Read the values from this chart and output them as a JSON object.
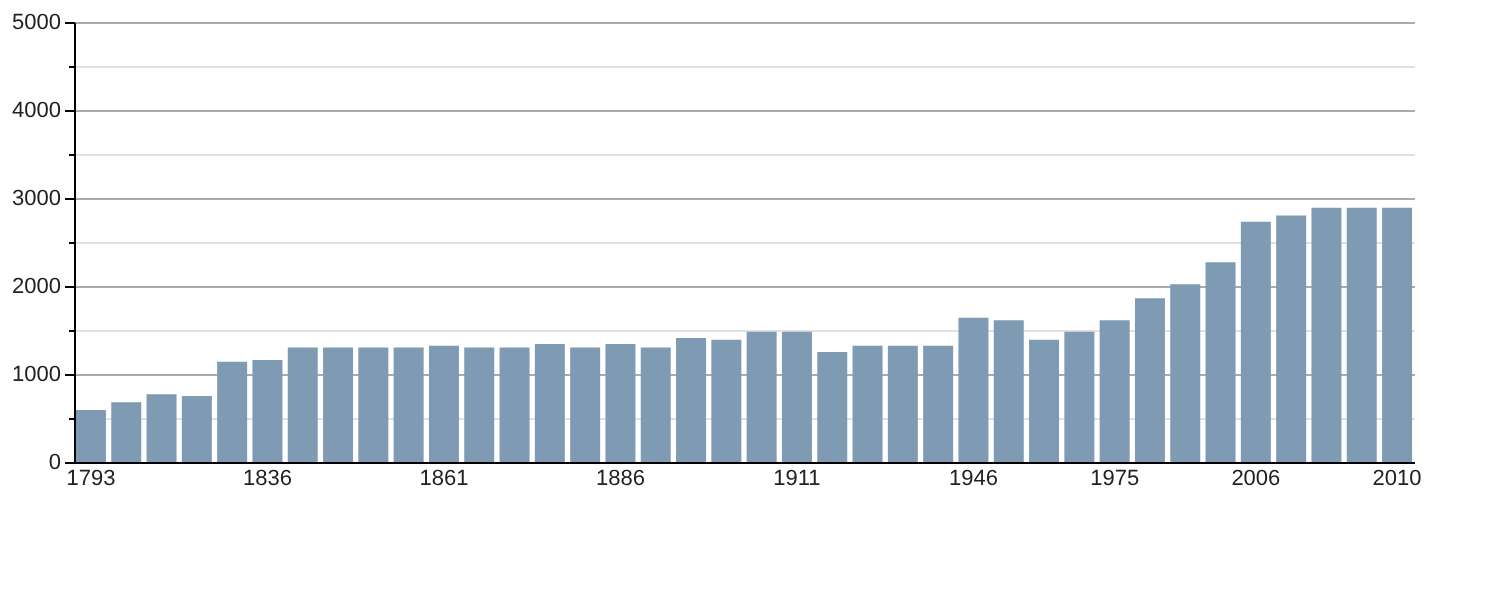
{
  "chart_data": {
    "type": "bar",
    "categories": [
      "1793",
      null,
      null,
      null,
      null,
      "1836",
      null,
      null,
      null,
      null,
      "1861",
      null,
      null,
      null,
      null,
      "1886",
      null,
      null,
      null,
      null,
      "1911",
      null,
      null,
      null,
      null,
      "1946",
      null,
      null,
      null,
      "1975",
      null,
      null,
      null,
      "2006",
      null,
      null,
      null,
      "2010"
    ],
    "values": [
      590,
      680,
      770,
      750,
      1140,
      1160,
      1300,
      1300,
      1300,
      1300,
      1320,
      1300,
      1300,
      1340,
      1300,
      1340,
      1300,
      1410,
      1390,
      1480,
      1480,
      1250,
      1320,
      1320,
      1320,
      1640,
      1610,
      1390,
      1480,
      1610,
      1860,
      2020,
      2270,
      2730,
      2800,
      2890,
      2890,
      2890
    ],
    "color": "#7f9ab3",
    "ylim": [
      0,
      5000
    ],
    "yticks": [
      0,
      {
        "value": 500,
        "label": null
      },
      1000,
      {
        "value": 1500,
        "label": null
      },
      2000,
      {
        "value": 2500,
        "label": null
      },
      3000,
      {
        "value": 3500,
        "label": null
      },
      4000,
      {
        "value": 4500,
        "label": null
      },
      5000
    ],
    "grid": "y"
  }
}
